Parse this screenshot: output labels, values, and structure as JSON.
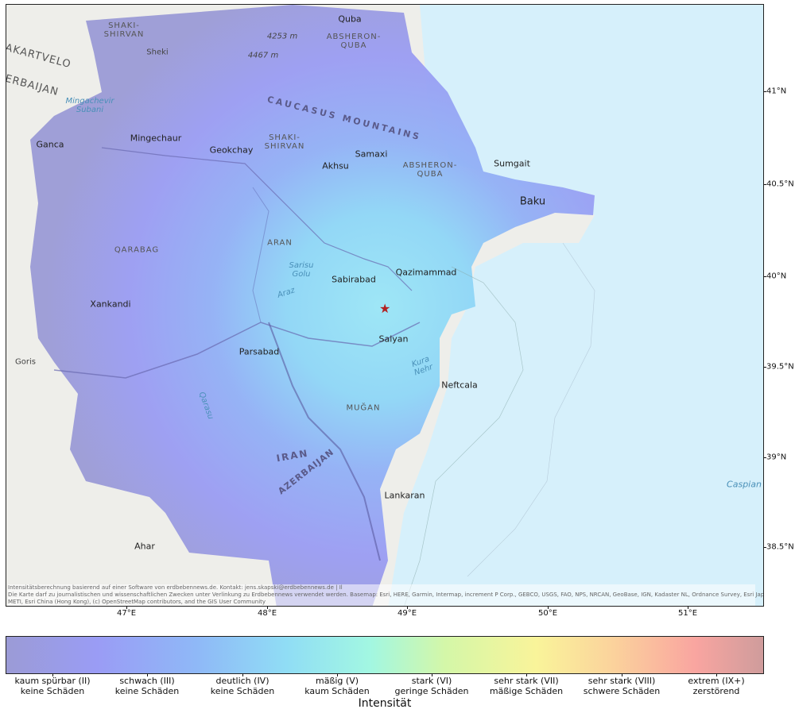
{
  "map": {
    "places": [
      {
        "id": "quba",
        "name": "Quba"
      },
      {
        "id": "absheron-quba-n",
        "name": "ABSHERON-\nQUBA"
      },
      {
        "id": "shaki-shirvan-n",
        "name": "SHAKI-\nSHIRVAN"
      },
      {
        "id": "sheki",
        "name": "Sheki"
      },
      {
        "id": "peak-4253",
        "name": "4253 m"
      },
      {
        "id": "peak-4467",
        "name": "4467 m"
      },
      {
        "id": "kartvelo",
        "name": "AKARTVELO"
      },
      {
        "id": "azerbaijan-w",
        "name": "ERBAIJAN"
      },
      {
        "id": "mingachevir-res",
        "name": "Mingachevir\nSubani"
      },
      {
        "id": "caucasus",
        "name": "CAUCASUS MOUNTAINS"
      },
      {
        "id": "ganca",
        "name": "Ganca"
      },
      {
        "id": "mingechaur",
        "name": "Mingechaur"
      },
      {
        "id": "geokchay",
        "name": "Geokchay"
      },
      {
        "id": "shaki-shirvan",
        "name": "SHAKI-\nSHIRVAN"
      },
      {
        "id": "samaxi",
        "name": "Samaxi"
      },
      {
        "id": "akhsu",
        "name": "Akhsu"
      },
      {
        "id": "absheron-quba",
        "name": "ABSHERON-\nQUBA"
      },
      {
        "id": "sumgait",
        "name": "Sumgait"
      },
      {
        "id": "baku",
        "name": "Baku"
      },
      {
        "id": "aran",
        "name": "ARAN"
      },
      {
        "id": "qarabag",
        "name": "QARABAG"
      },
      {
        "id": "sarisu",
        "name": "Sarisu\nGolu"
      },
      {
        "id": "sabirabad",
        "name": "Sabirabad"
      },
      {
        "id": "qazimammad",
        "name": "Qazimammad"
      },
      {
        "id": "xankandi",
        "name": "Xankandi"
      },
      {
        "id": "araz",
        "name": "Araz"
      },
      {
        "id": "salyan",
        "name": "Salyan"
      },
      {
        "id": "parsabad",
        "name": "Parsabad"
      },
      {
        "id": "goris",
        "name": "Goris"
      },
      {
        "id": "kura",
        "name": "Kura\nNehr"
      },
      {
        "id": "neftcala",
        "name": "Neftcala"
      },
      {
        "id": "mugan",
        "name": "MUĞAN"
      },
      {
        "id": "qarasu",
        "name": "Qarasu"
      },
      {
        "id": "iran",
        "name": "IRAN"
      },
      {
        "id": "azerbaijan-s",
        "name": "AZERBAIJAN"
      },
      {
        "id": "lankaran",
        "name": "Lankaran"
      },
      {
        "id": "caspian",
        "name": "Caspian"
      },
      {
        "id": "ahar",
        "name": "Ahar"
      }
    ],
    "lat_labels": [
      "41°N",
      "40.5°N",
      "40°N",
      "39.5°N",
      "39°N",
      "38.5°N"
    ],
    "lon_labels": [
      "47°E",
      "48°E",
      "49°E",
      "50°E",
      "51°E"
    ],
    "epicenter_symbol": "★",
    "attribution": "Intensitätsberechnung basierend auf einer Software von erdbebennews.de. Kontakt: jens.skapski@erdbebennews.de | Il\nDie Karte darf zu journalistischen und wissenschaftlichen Zwecken unter Verlinkung zu Erdbebennews verwendet werden. Basemap: Esri, HERE, Garmin, Intermap, increment P Corp., GEBCO, USGS, FAO, NPS, NRCAN, GeoBase, IGN, Kadaster NL, Ordnance Survey, Esri Japan,\nMETI, Esri China (Hong Kong), (c) OpenStreetMap contributors, and the GIS User Community"
  },
  "colorbar": {
    "title": "Intensität",
    "labels": [
      "kaum spürbar (II)\nkeine Schäden",
      "schwach (III)\nkeine Schäden",
      "deutlich (IV)\nkeine Schäden",
      "mäßig (V)\nkaum Schäden",
      "stark (VI)\ngeringe Schäden",
      "sehr stark (VII)\nmäßige Schäden",
      "sehr stark (VIII)\nschwere Schäden",
      "extrem (IX+)\nzerstörend"
    ]
  },
  "colors": {
    "water": "#d6f0fb",
    "land": "#eeeeea",
    "intensity_ii": "#9b9bd6",
    "intensity_iii": "#9a9cf5",
    "intensity_iv": "#90ddf5",
    "epicenter": "#b22222"
  }
}
